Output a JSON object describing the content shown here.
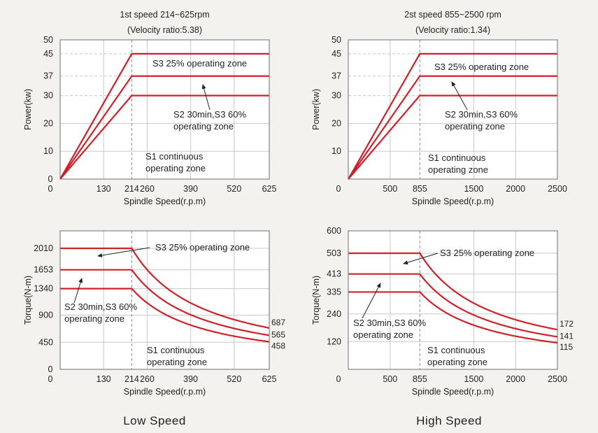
{
  "captions": {
    "left": "Low Speed",
    "right": "High Speed"
  },
  "colors": {
    "curve": "#d0202a",
    "frame": "#6f6f6f",
    "grid": "#c8c8c8",
    "plot_bg": "#ffffff",
    "text": "#222222"
  },
  "chart_data": [
    {
      "type": "line",
      "title": "1st speed 214~625rpm",
      "subtitle": "(Velocity ratio:5.38)",
      "xlabel": "Spindle Speed(r.p.m)",
      "ylabel": "Power(kw)",
      "xlim": [
        0,
        625
      ],
      "ylim": [
        0,
        50
      ],
      "xticks": [
        0,
        130,
        214,
        260,
        390,
        520,
        625
      ],
      "yticks": [
        10,
        20,
        30,
        37,
        45,
        50
      ],
      "y_origin_label": "0",
      "base_speed": 214,
      "series": [
        {
          "x": [
            0,
            214,
            625
          ],
          "y": [
            0,
            45,
            45
          ]
        },
        {
          "x": [
            0,
            214,
            625
          ],
          "y": [
            0,
            37,
            37
          ]
        },
        {
          "x": [
            0,
            214,
            625
          ],
          "y": [
            0,
            30,
            30
          ]
        }
      ],
      "annotations": [
        {
          "lines": [
            "S3 25% operating zone"
          ]
        },
        {
          "lines": [
            "S2 30min,S3 60%",
            "operating zone"
          ]
        },
        {
          "lines": [
            "S1 continuous",
            "operating zone"
          ]
        }
      ]
    },
    {
      "type": "line",
      "title": "2st speed 855~2500 rpm",
      "subtitle": "(Velocity ratio:1.34)",
      "xlabel": "Spindle Speed(r.p.m)",
      "ylabel": "Power(kw)",
      "xlim": [
        0,
        2500
      ],
      "ylim": [
        0,
        50
      ],
      "xticks": [
        0,
        500,
        855,
        1500,
        2000,
        2500
      ],
      "yticks": [
        10,
        20,
        30,
        37,
        45,
        50
      ],
      "y_origin_label": "",
      "base_speed": 855,
      "series": [
        {
          "x": [
            0,
            855,
            2500
          ],
          "y": [
            0,
            45,
            45
          ]
        },
        {
          "x": [
            0,
            855,
            2500
          ],
          "y": [
            0,
            37,
            37
          ]
        },
        {
          "x": [
            0,
            855,
            2500
          ],
          "y": [
            0,
            30,
            30
          ]
        }
      ],
      "annotations": [
        {
          "lines": [
            "S3 25% operating zone"
          ]
        },
        {
          "lines": [
            "S2 30min,S3 60%",
            "operating zone"
          ]
        },
        {
          "lines": [
            "S1 continuous",
            "operating zone"
          ]
        }
      ]
    },
    {
      "type": "line",
      "title": "",
      "xlabel": "Spindle Speed(r.p.m)",
      "ylabel": "Torque(N-m)",
      "xlim": [
        0,
        625
      ],
      "ylim": [
        0,
        2300
      ],
      "xticks": [
        0,
        130,
        214,
        260,
        390,
        520,
        625
      ],
      "yticks": [
        450,
        900,
        1340,
        1653,
        2010
      ],
      "y_origin_label": "0",
      "base_speed": 214,
      "series": [
        {
          "y_const": 2010,
          "end_value": 687,
          "end_label": "687"
        },
        {
          "y_const": 1653,
          "end_value": 565,
          "end_label": "565"
        },
        {
          "y_const": 1340,
          "end_value": 458,
          "end_label": "458"
        }
      ],
      "annotations": [
        {
          "lines": [
            "S3 25% operating zone"
          ]
        },
        {
          "lines": [
            "S2 30min,S3 60%",
            "operating zone"
          ]
        },
        {
          "lines": [
            "S1 continuous",
            "operating zone"
          ]
        }
      ]
    },
    {
      "type": "line",
      "title": "",
      "xlabel": "Spindle Speed(r.p.m)",
      "ylabel": "Torque(N-m)",
      "xlim": [
        0,
        2500
      ],
      "ylim": [
        0,
        600
      ],
      "xticks": [
        0,
        500,
        855,
        1500,
        2000,
        2500
      ],
      "yticks": [
        120,
        240,
        335,
        413,
        503,
        600
      ],
      "y_origin_label": "",
      "base_speed": 855,
      "series": [
        {
          "y_const": 503,
          "end_value": 172,
          "end_label": "172"
        },
        {
          "y_const": 413,
          "end_value": 141,
          "end_label": "141"
        },
        {
          "y_const": 335,
          "end_value": 115,
          "end_label": "115"
        }
      ],
      "annotations": [
        {
          "lines": [
            "S3 25% operating zone"
          ]
        },
        {
          "lines": [
            "S2 30min,S3 60%",
            "operating zone"
          ]
        },
        {
          "lines": [
            "S1 continuous",
            "operating zone"
          ]
        }
      ]
    }
  ]
}
